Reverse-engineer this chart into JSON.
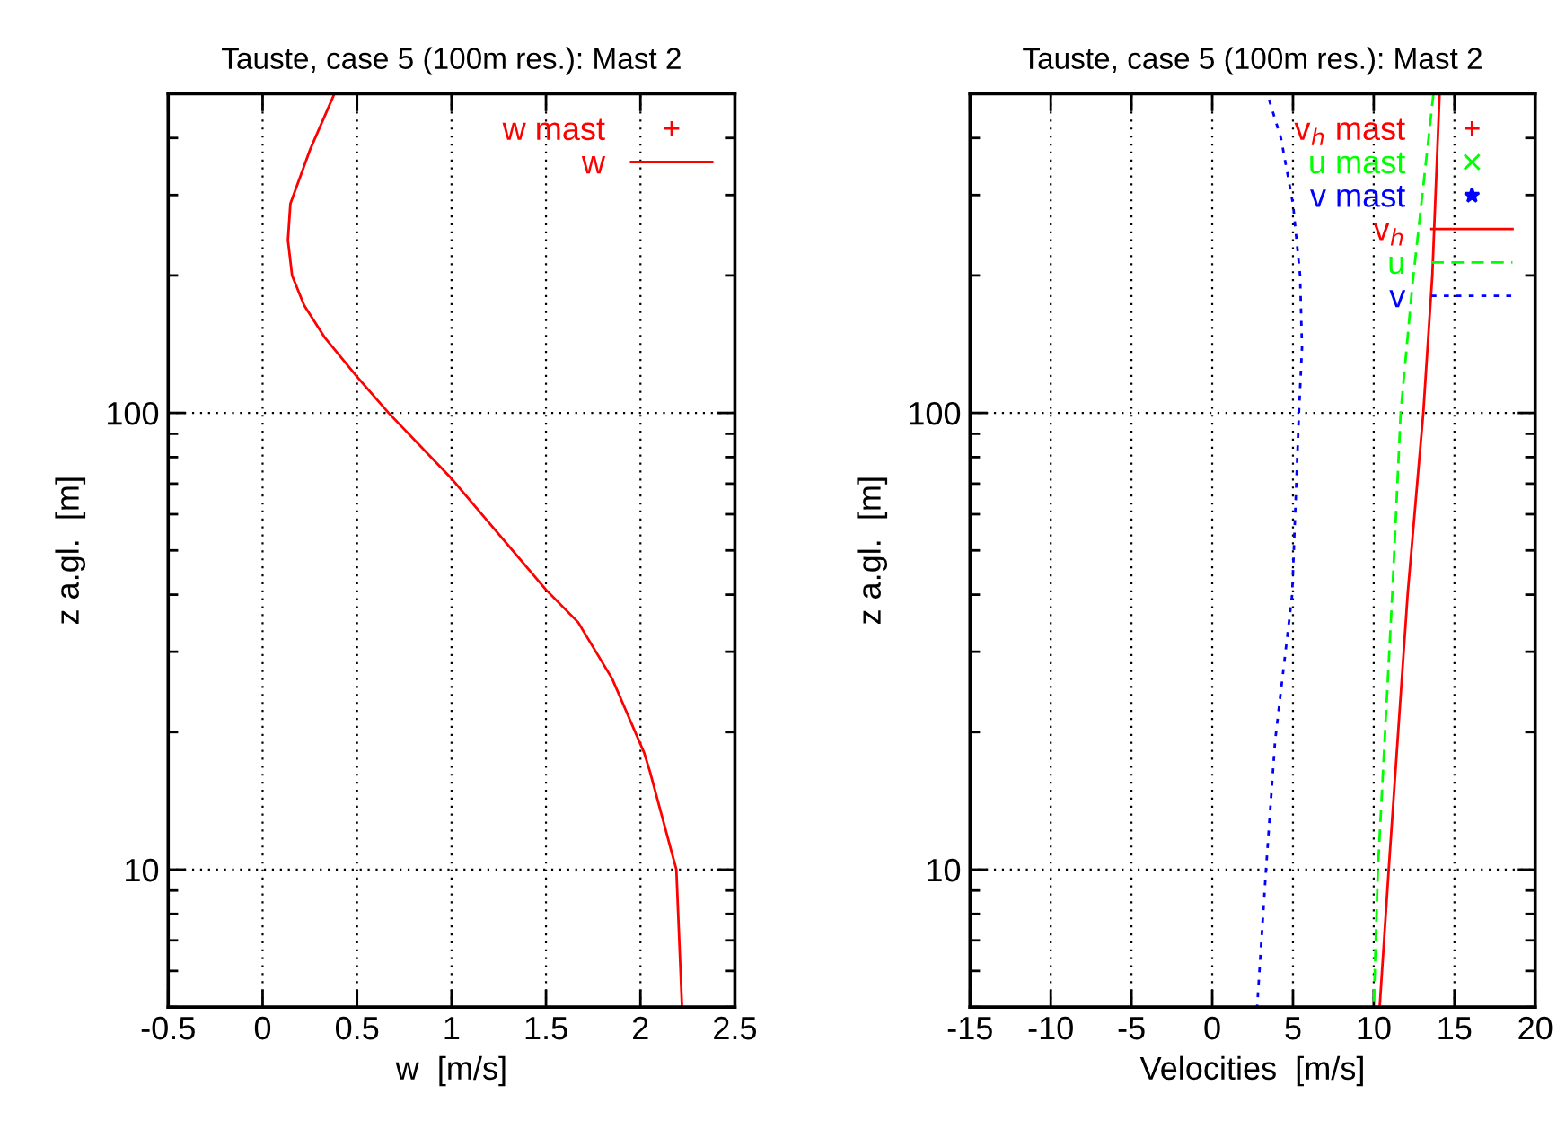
{
  "chart_data": [
    {
      "type": "line",
      "title": "Tauste, case 5 (100m res.): Mast 2",
      "xlabel": "w  [m/s]",
      "ylabel": "z a.gl.  [m]",
      "log": "y",
      "xlim": [
        -0.5,
        2.5
      ],
      "xticks": [
        -0.5,
        0,
        0.5,
        1,
        1.5,
        2,
        2.5
      ],
      "ylim": [
        5,
        500
      ],
      "yticks": [
        10,
        100
      ],
      "grid": true,
      "legend": "top right",
      "series": [
        {
          "name": "w mast",
          "type": "scatter",
          "marker": "plus",
          "color": "#ff0000"
        },
        {
          "name": "w",
          "line_style": "solid",
          "color": "#ff0000",
          "x": [
            0.38,
            0.25,
            0.147,
            0.134,
            0.156,
            0.22,
            0.33,
            0.5,
            0.667,
            1.0,
            1.5,
            1.67,
            1.85,
            2.02,
            2.05,
            2.19,
            2.22
          ],
          "values": [
            500,
            376,
            287,
            239,
            200,
            172,
            146,
            120,
            100,
            71.8,
            41,
            34.8,
            26.2,
            18,
            16.4,
            10,
            5
          ]
        }
      ]
    },
    {
      "type": "line",
      "title": "Tauste, case 5 (100m res.): Mast 2",
      "xlabel": "Velocities  [m/s]",
      "ylabel": "z a.gl.  [m]",
      "log": "y",
      "xlim": [
        -15,
        20
      ],
      "xticks": [
        -15,
        -10,
        -5,
        0,
        5,
        10,
        15,
        20
      ],
      "ylim": [
        5,
        500
      ],
      "yticks": [
        10,
        100
      ],
      "grid": true,
      "legend": "top right",
      "series": [
        {
          "name": "v$_{h}$ mast",
          "type": "scatter",
          "marker": "plus",
          "color": "#ff0000"
        },
        {
          "name": "u mast",
          "type": "scatter",
          "marker": "cross",
          "color": "#00ff00"
        },
        {
          "name": "v mast",
          "type": "scatter",
          "marker": "star",
          "color": "#0000ff"
        },
        {
          "name": "v$_{h}$",
          "line_style": "solid",
          "color": "#ff0000",
          "x": [
            14.08,
            13.63,
            13.07,
            12.1,
            10.93,
            10.37
          ],
          "values": [
            500,
            200,
            100,
            40,
            10,
            5
          ]
        },
        {
          "name": "u",
          "line_style": "dashed",
          "color": "#00ff00",
          "x": [
            13.7,
            12.4,
            11.67,
            11.15,
            10.26,
            10.0
          ],
          "values": [
            500,
            191,
            100,
            40,
            10,
            5
          ]
        },
        {
          "name": "v",
          "line_style": "dotted",
          "color": "#0000ff",
          "x": [
            3.52,
            4.26,
            5.0,
            5.44,
            5.56,
            5.37,
            4.95,
            3.89,
            3.33,
            2.78
          ],
          "values": [
            485,
            399,
            287,
            200,
            139,
            100,
            40,
            19.1,
            10,
            5
          ]
        }
      ]
    }
  ]
}
